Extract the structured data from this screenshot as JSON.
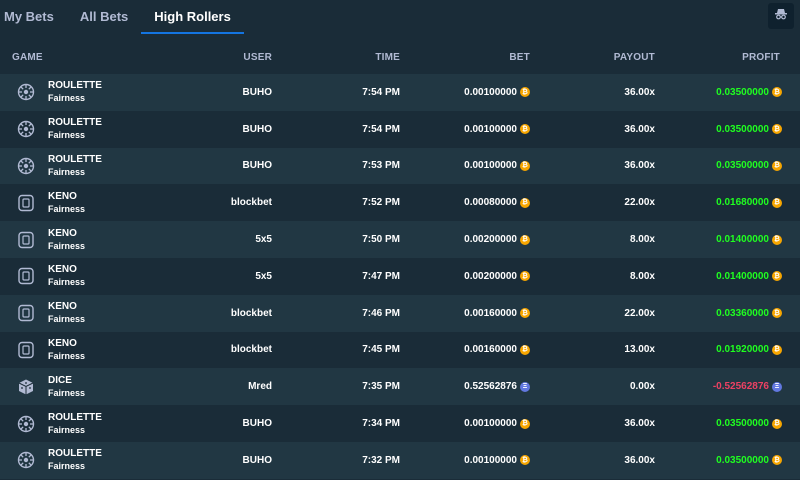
{
  "tabs": [
    {
      "label": "My Bets",
      "active": false
    },
    {
      "label": "All Bets",
      "active": false
    },
    {
      "label": "High Rollers",
      "active": true
    }
  ],
  "columns": {
    "game": "GAME",
    "user": "USER",
    "time": "TIME",
    "bet": "BET",
    "payout": "PAYOUT",
    "profit": "PROFIT"
  },
  "colors": {
    "background": "#1a2c38",
    "row_alt": "#213743",
    "accent": "#1475e1",
    "profit_positive": "#1fff20",
    "profit_negative": "#ed4163",
    "btc_coin": "#f7a600",
    "eth_coin": "#6278e0"
  },
  "rows": [
    {
      "game": "ROULETTE",
      "sub": "Fairness",
      "icon": "roulette-icon",
      "user": "BUHO",
      "time": "7:54 PM",
      "bet": "0.00100000",
      "payout": "36.00x",
      "profit": "0.03500000",
      "coin": "btc",
      "win": true
    },
    {
      "game": "ROULETTE",
      "sub": "Fairness",
      "icon": "roulette-icon",
      "user": "BUHO",
      "time": "7:54 PM",
      "bet": "0.00100000",
      "payout": "36.00x",
      "profit": "0.03500000",
      "coin": "btc",
      "win": true
    },
    {
      "game": "ROULETTE",
      "sub": "Fairness",
      "icon": "roulette-icon",
      "user": "BUHO",
      "time": "7:53 PM",
      "bet": "0.00100000",
      "payout": "36.00x",
      "profit": "0.03500000",
      "coin": "btc",
      "win": true
    },
    {
      "game": "KENO",
      "sub": "Fairness",
      "icon": "keno-icon",
      "user": "blockbet",
      "time": "7:52 PM",
      "bet": "0.00080000",
      "payout": "22.00x",
      "profit": "0.01680000",
      "coin": "btc",
      "win": true
    },
    {
      "game": "KENO",
      "sub": "Fairness",
      "icon": "keno-icon",
      "user": "5x5",
      "time": "7:50 PM",
      "bet": "0.00200000",
      "payout": "8.00x",
      "profit": "0.01400000",
      "coin": "btc",
      "win": true
    },
    {
      "game": "KENO",
      "sub": "Fairness",
      "icon": "keno-icon",
      "user": "5x5",
      "time": "7:47 PM",
      "bet": "0.00200000",
      "payout": "8.00x",
      "profit": "0.01400000",
      "coin": "btc",
      "win": true
    },
    {
      "game": "KENO",
      "sub": "Fairness",
      "icon": "keno-icon",
      "user": "blockbet",
      "time": "7:46 PM",
      "bet": "0.00160000",
      "payout": "22.00x",
      "profit": "0.03360000",
      "coin": "btc",
      "win": true
    },
    {
      "game": "KENO",
      "sub": "Fairness",
      "icon": "keno-icon",
      "user": "blockbet",
      "time": "7:45 PM",
      "bet": "0.00160000",
      "payout": "13.00x",
      "profit": "0.01920000",
      "coin": "btc",
      "win": true
    },
    {
      "game": "DICE",
      "sub": "Fairness",
      "icon": "dice-icon",
      "user": "Mred",
      "time": "7:35 PM",
      "bet": "0.52562876",
      "payout": "0.00x",
      "profit": "-0.52562876",
      "coin": "eth",
      "win": false
    },
    {
      "game": "ROULETTE",
      "sub": "Fairness",
      "icon": "roulette-icon",
      "user": "BUHO",
      "time": "7:34 PM",
      "bet": "0.00100000",
      "payout": "36.00x",
      "profit": "0.03500000",
      "coin": "btc",
      "win": true
    },
    {
      "game": "ROULETTE",
      "sub": "Fairness",
      "icon": "roulette-icon",
      "user": "BUHO",
      "time": "7:32 PM",
      "bet": "0.00100000",
      "payout": "36.00x",
      "profit": "0.03500000",
      "coin": "btc",
      "win": true
    }
  ]
}
